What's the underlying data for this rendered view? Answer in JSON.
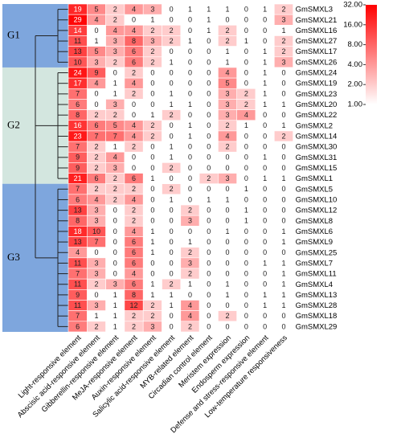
{
  "chart_data": {
    "type": "heatmap",
    "columns": [
      "Light-responsive element",
      "Abscisic acid-responsive element",
      "Gibberellin-responsive element",
      "MeJA-responsive element",
      "Auxin-responsive element",
      "Salicylic acid-responsive element",
      "MYB-related element",
      "Circadian control element",
      "Meristem expression",
      "Endosperm expression",
      "Defense and stress-responsive element",
      "Low-temperature responsiveness"
    ],
    "rows": [
      "GmSMXL3",
      "GmSMXL21",
      "GmSMXL16",
      "GmSMXL27",
      "GmSMXL17",
      "GmSMXL26",
      "GmSMXL24",
      "GmSMXL19",
      "GmSMXL23",
      "GmSMXL20",
      "GmSMXL22",
      "GmSMXL2",
      "GmSMXL14",
      "GmSMXL30",
      "GmSMXL31",
      "GmSMXL15",
      "GmSMXL1",
      "GmSMXL5",
      "GmSMXL10",
      "GmSMXL12",
      "GmSMXL8",
      "GmSMXL6",
      "GmSMXL9",
      "GmSMXL25",
      "GmSMXL7",
      "GmSMXL11",
      "GmSMXL4",
      "GmSMXL13",
      "GmSMXL28",
      "GmSMXL18",
      "GmSMXL29"
    ],
    "values": [
      [
        19,
        5,
        2,
        4,
        3,
        0,
        1,
        1,
        1,
        0,
        1,
        2
      ],
      [
        29,
        4,
        2,
        0,
        1,
        0,
        0,
        1,
        0,
        0,
        0,
        3
      ],
      [
        14,
        0,
        4,
        4,
        2,
        2,
        0,
        1,
        2,
        0,
        0,
        1
      ],
      [
        11,
        1,
        3,
        8,
        3,
        2,
        1,
        0,
        2,
        1,
        0,
        2
      ],
      [
        13,
        5,
        3,
        6,
        2,
        0,
        0,
        0,
        1,
        0,
        1,
        2
      ],
      [
        10,
        3,
        2,
        6,
        2,
        1,
        0,
        0,
        1,
        0,
        1,
        3
      ],
      [
        24,
        9,
        0,
        2,
        0,
        0,
        0,
        0,
        4,
        0,
        1,
        0
      ],
      [
        17,
        4,
        1,
        4,
        0,
        0,
        0,
        0,
        5,
        0,
        1,
        0
      ],
      [
        7,
        0,
        1,
        2,
        0,
        1,
        0,
        0,
        3,
        2,
        1,
        0
      ],
      [
        6,
        0,
        3,
        0,
        0,
        1,
        1,
        0,
        3,
        2,
        1,
        1
      ],
      [
        8,
        2,
        2,
        0,
        1,
        2,
        0,
        0,
        3,
        4,
        0,
        0
      ],
      [
        16,
        6,
        5,
        4,
        2,
        0,
        1,
        0,
        2,
        1,
        0,
        1
      ],
      [
        23,
        7,
        7,
        4,
        2,
        0,
        1,
        0,
        4,
        0,
        0,
        2
      ],
      [
        7,
        2,
        1,
        2,
        0,
        1,
        0,
        0,
        2,
        0,
        0,
        0
      ],
      [
        9,
        2,
        4,
        0,
        0,
        1,
        0,
        0,
        0,
        0,
        1,
        0
      ],
      [
        9,
        2,
        3,
        0,
        0,
        2,
        0,
        0,
        0,
        0,
        0,
        0
      ],
      [
        21,
        6,
        2,
        6,
        1,
        0,
        0,
        2,
        3,
        0,
        1,
        1
      ],
      [
        7,
        2,
        2,
        2,
        0,
        2,
        0,
        0,
        0,
        1,
        0,
        0
      ],
      [
        6,
        4,
        2,
        4,
        0,
        1,
        0,
        1,
        1,
        0,
        0,
        0
      ],
      [
        13,
        3,
        0,
        2,
        0,
        0,
        2,
        0,
        0,
        1,
        0,
        0
      ],
      [
        8,
        3,
        0,
        2,
        0,
        0,
        3,
        0,
        0,
        1,
        0,
        0
      ],
      [
        18,
        10,
        0,
        4,
        1,
        0,
        0,
        0,
        1,
        0,
        0,
        1
      ],
      [
        13,
        7,
        0,
        6,
        1,
        0,
        1,
        0,
        0,
        0,
        0,
        1
      ],
      [
        4,
        0,
        0,
        6,
        1,
        0,
        2,
        0,
        0,
        0,
        0,
        0
      ],
      [
        11,
        3,
        0,
        6,
        0,
        0,
        3,
        0,
        0,
        0,
        1,
        1
      ],
      [
        7,
        3,
        0,
        4,
        0,
        0,
        2,
        0,
        0,
        0,
        0,
        1
      ],
      [
        11,
        2,
        3,
        6,
        1,
        2,
        1,
        0,
        1,
        0,
        0,
        1
      ],
      [
        9,
        0,
        1,
        8,
        1,
        1,
        0,
        0,
        1,
        0,
        1,
        1
      ],
      [
        11,
        3,
        1,
        12,
        2,
        1,
        4,
        0,
        0,
        0,
        1,
        1
      ],
      [
        7,
        1,
        1,
        2,
        2,
        0,
        4,
        0,
        2,
        0,
        0,
        0
      ],
      [
        6,
        2,
        1,
        2,
        3,
        0,
        2,
        0,
        0,
        0,
        0,
        0
      ]
    ],
    "groups": [
      {
        "label": "G1",
        "color": "#7ea6dd",
        "span": [
          0,
          5
        ]
      },
      {
        "label": "G2",
        "color": "#d3e6df",
        "span": [
          6,
          16
        ]
      },
      {
        "label": "G3",
        "color": "#7ea6dd",
        "span": [
          17,
          30
        ]
      }
    ],
    "colorscale": {
      "log": true,
      "colors": [
        "#ffffff",
        "#ff0000"
      ],
      "lim": [
        1,
        32
      ],
      "ticks": [
        {
          "value": 32,
          "label": "32.00"
        },
        {
          "value": 16,
          "label": "16.00"
        },
        {
          "value": 8,
          "label": "8.00"
        },
        {
          "value": 4,
          "label": "4.00"
        },
        {
          "value": 2,
          "label": "2.00"
        },
        {
          "value": 1,
          "label": "1.00"
        }
      ]
    }
  }
}
